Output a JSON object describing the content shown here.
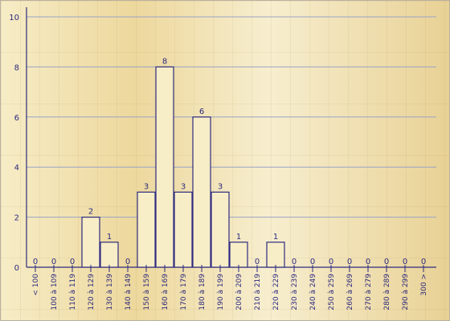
{
  "chart_data": {
    "type": "bar",
    "categories": [
      "< 100",
      "100 à 109",
      "110 à 119",
      "120 à 129",
      "130 à 139",
      "140 à 149",
      "150 à 159",
      "160 à 169",
      "170 à 179",
      "180 à 189",
      "190 à 199",
      "200 à 209",
      "210 à 219",
      "220 à 229",
      "230 à 239",
      "240 à 249",
      "250 à 259",
      "260 à 269",
      "270 à 279",
      "280 à 289",
      "290 à 299",
      "300 >"
    ],
    "values": [
      0,
      0,
      0,
      2,
      1,
      0,
      3,
      8,
      3,
      6,
      3,
      1,
      0,
      1,
      0,
      0,
      0,
      0,
      0,
      0,
      0,
      0
    ],
    "ylim": [
      0,
      10
    ],
    "yticks": [
      0,
      2,
      4,
      6,
      8,
      10
    ],
    "grid": true,
    "data_labels": true
  }
}
